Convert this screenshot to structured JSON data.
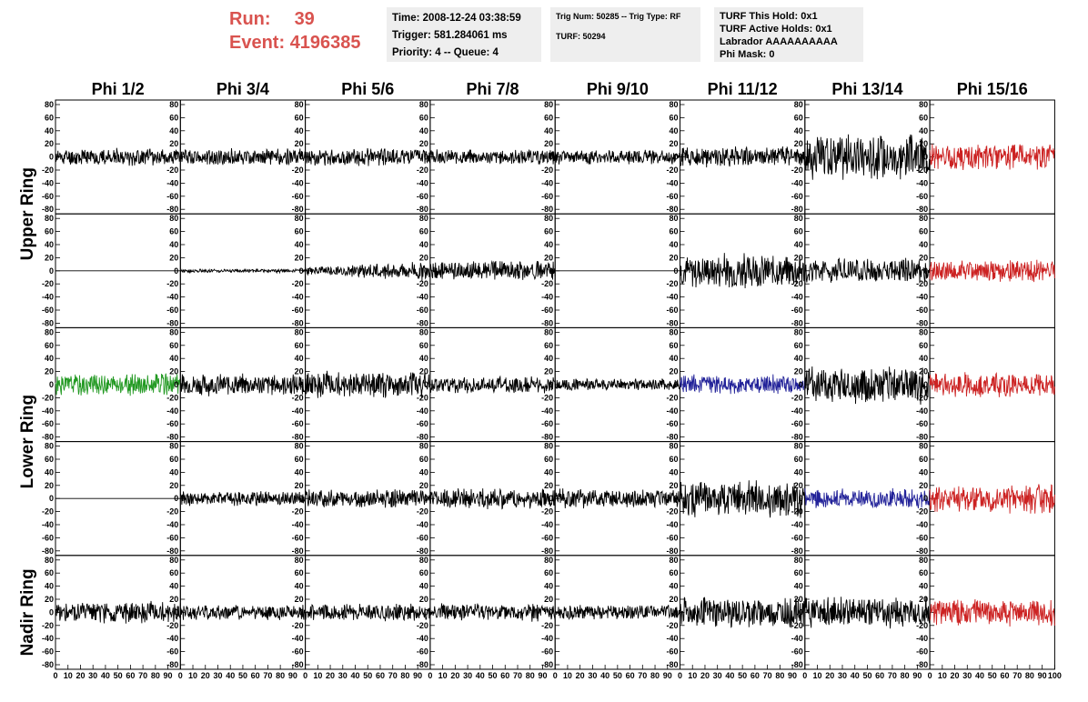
{
  "header": {
    "run_label": "Run:",
    "run_value": "39",
    "event_label": "Event:",
    "event_value": "4196385",
    "time": "Time: 2008-12-24 03:38:59",
    "trigger": "Trigger: 581.284061 ms",
    "priority": "Priority: 4 -- Queue: 4",
    "trig_num": "Trig Num: 50285 -- Trig Type: RF",
    "turf": "TURF: 50294",
    "turf_this_hold": "TURF This Hold: 0x1",
    "turf_active_holds": "TURF Active Holds: 0x1",
    "labrador": "Labrador AAAAAAAAAA",
    "phi_mask": "Phi Mask: 0"
  },
  "colors": {
    "header_red": "#d9534f",
    "default": "#000000",
    "red": "#cc2222",
    "green": "#229922",
    "blue": "#222299"
  },
  "chart_data": {
    "type": "line",
    "columns": [
      "Phi 1/2",
      "Phi 3/4",
      "Phi 5/6",
      "Phi 7/8",
      "Phi 9/10",
      "Phi 11/12",
      "Phi 13/14",
      "Phi 15/16"
    ],
    "ring_labels": [
      {
        "text": "Upper Ring",
        "rows": [
          0,
          1
        ]
      },
      {
        "text": "Lower Ring",
        "rows": [
          2,
          3
        ]
      },
      {
        "text": "Nadir Ring",
        "rows": [
          4,
          4
        ]
      }
    ],
    "xlim": [
      0,
      100
    ],
    "ylim": [
      -80,
      80
    ],
    "x_ticks": [
      0,
      10,
      20,
      30,
      40,
      50,
      60,
      70,
      80,
      90
    ],
    "x_ticks_last": [
      0,
      10,
      20,
      30,
      40,
      50,
      60,
      70,
      80,
      90,
      100
    ],
    "y_ticks": [
      80,
      60,
      40,
      20,
      0,
      -20,
      -40,
      -60,
      -80
    ],
    "samples_per_trace": 260,
    "grid": false,
    "panels": [
      [
        {
          "color": "black",
          "amp": 14,
          "seed": 11
        },
        {
          "color": "black",
          "amp": 14,
          "seed": 12
        },
        {
          "color": "black",
          "amp": 14,
          "seed": 13
        },
        {
          "color": "black",
          "amp": 12,
          "seed": 14
        },
        {
          "color": "black",
          "amp": 12,
          "seed": 15
        },
        {
          "color": "black",
          "amp": 17,
          "seed": 16
        },
        {
          "color": "black",
          "amp": 38,
          "seed": 17
        },
        {
          "color": "red",
          "amp": 22,
          "seed": 18
        }
      ],
      [
        {
          "color": "black",
          "amp": 0,
          "seed": 21
        },
        {
          "color": "black",
          "amp": 3,
          "seed": 22
        },
        {
          "color": "black",
          "amp": 18,
          "seed": 23,
          "ramp": true
        },
        {
          "color": "black",
          "amp": 16,
          "seed": 24
        },
        {
          "color": "black",
          "amp": 0,
          "seed": 25
        },
        {
          "color": "black",
          "amp": 28,
          "seed": 26
        },
        {
          "color": "black",
          "amp": 20,
          "seed": 27
        },
        {
          "color": "red",
          "amp": 18,
          "seed": 28
        }
      ],
      [
        {
          "color": "green",
          "amp": 18,
          "seed": 31
        },
        {
          "color": "black",
          "amp": 18,
          "seed": 32
        },
        {
          "color": "black",
          "amp": 22,
          "seed": 33
        },
        {
          "color": "black",
          "amp": 14,
          "seed": 34
        },
        {
          "color": "black",
          "amp": 10,
          "seed": 35
        },
        {
          "color": "blue",
          "amp": 16,
          "seed": 36
        },
        {
          "color": "black",
          "amp": 32,
          "seed": 37
        },
        {
          "color": "red",
          "amp": 20,
          "seed": 38
        }
      ],
      [
        {
          "color": "black",
          "amp": 0,
          "seed": 41
        },
        {
          "color": "black",
          "amp": 12,
          "seed": 42
        },
        {
          "color": "black",
          "amp": 15,
          "seed": 43
        },
        {
          "color": "black",
          "amp": 17,
          "seed": 44
        },
        {
          "color": "black",
          "amp": 16,
          "seed": 45
        },
        {
          "color": "black",
          "amp": 30,
          "seed": 46
        },
        {
          "color": "blue",
          "amp": 16,
          "seed": 47
        },
        {
          "color": "red",
          "amp": 24,
          "seed": 48
        }
      ],
      [
        {
          "color": "black",
          "amp": 18,
          "seed": 51
        },
        {
          "color": "black",
          "amp": 13,
          "seed": 52
        },
        {
          "color": "black",
          "amp": 14,
          "seed": 53
        },
        {
          "color": "black",
          "amp": 15,
          "seed": 54
        },
        {
          "color": "black",
          "amp": 12,
          "seed": 55
        },
        {
          "color": "black",
          "amp": 25,
          "seed": 56
        },
        {
          "color": "black",
          "amp": 25,
          "seed": 57
        },
        {
          "color": "red",
          "amp": 22,
          "seed": 58
        }
      ]
    ]
  }
}
